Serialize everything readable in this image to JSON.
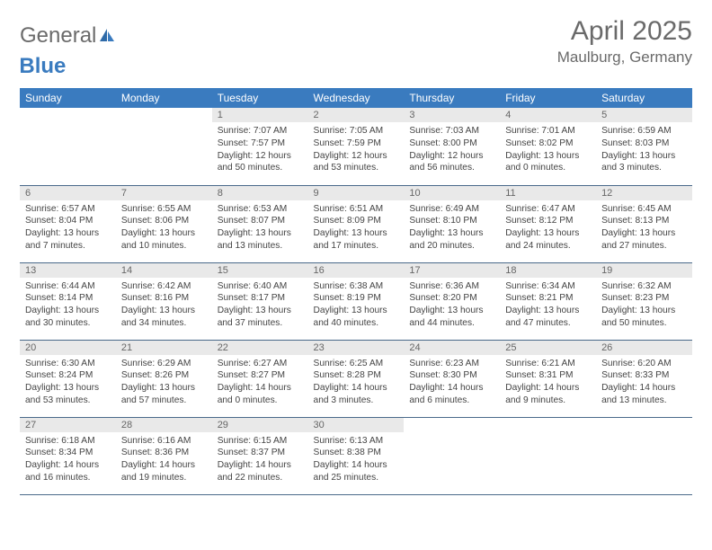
{
  "logo": {
    "text1": "General",
    "text2": "Blue"
  },
  "title": "April 2025",
  "location": "Maulburg, Germany",
  "weekdays": [
    "Sunday",
    "Monday",
    "Tuesday",
    "Wednesday",
    "Thursday",
    "Friday",
    "Saturday"
  ],
  "colors": {
    "header_bg": "#3a7bbf",
    "daynum_bg": "#e9e9e9",
    "border": "#4a6a8a"
  },
  "grid": [
    [
      null,
      null,
      {
        "n": "1",
        "sr": "7:07 AM",
        "ss": "7:57 PM",
        "dl": "12 hours and 50 minutes."
      },
      {
        "n": "2",
        "sr": "7:05 AM",
        "ss": "7:59 PM",
        "dl": "12 hours and 53 minutes."
      },
      {
        "n": "3",
        "sr": "7:03 AM",
        "ss": "8:00 PM",
        "dl": "12 hours and 56 minutes."
      },
      {
        "n": "4",
        "sr": "7:01 AM",
        "ss": "8:02 PM",
        "dl": "13 hours and 0 minutes."
      },
      {
        "n": "5",
        "sr": "6:59 AM",
        "ss": "8:03 PM",
        "dl": "13 hours and 3 minutes."
      }
    ],
    [
      {
        "n": "6",
        "sr": "6:57 AM",
        "ss": "8:04 PM",
        "dl": "13 hours and 7 minutes."
      },
      {
        "n": "7",
        "sr": "6:55 AM",
        "ss": "8:06 PM",
        "dl": "13 hours and 10 minutes."
      },
      {
        "n": "8",
        "sr": "6:53 AM",
        "ss": "8:07 PM",
        "dl": "13 hours and 13 minutes."
      },
      {
        "n": "9",
        "sr": "6:51 AM",
        "ss": "8:09 PM",
        "dl": "13 hours and 17 minutes."
      },
      {
        "n": "10",
        "sr": "6:49 AM",
        "ss": "8:10 PM",
        "dl": "13 hours and 20 minutes."
      },
      {
        "n": "11",
        "sr": "6:47 AM",
        "ss": "8:12 PM",
        "dl": "13 hours and 24 minutes."
      },
      {
        "n": "12",
        "sr": "6:45 AM",
        "ss": "8:13 PM",
        "dl": "13 hours and 27 minutes."
      }
    ],
    [
      {
        "n": "13",
        "sr": "6:44 AM",
        "ss": "8:14 PM",
        "dl": "13 hours and 30 minutes."
      },
      {
        "n": "14",
        "sr": "6:42 AM",
        "ss": "8:16 PM",
        "dl": "13 hours and 34 minutes."
      },
      {
        "n": "15",
        "sr": "6:40 AM",
        "ss": "8:17 PM",
        "dl": "13 hours and 37 minutes."
      },
      {
        "n": "16",
        "sr": "6:38 AM",
        "ss": "8:19 PM",
        "dl": "13 hours and 40 minutes."
      },
      {
        "n": "17",
        "sr": "6:36 AM",
        "ss": "8:20 PM",
        "dl": "13 hours and 44 minutes."
      },
      {
        "n": "18",
        "sr": "6:34 AM",
        "ss": "8:21 PM",
        "dl": "13 hours and 47 minutes."
      },
      {
        "n": "19",
        "sr": "6:32 AM",
        "ss": "8:23 PM",
        "dl": "13 hours and 50 minutes."
      }
    ],
    [
      {
        "n": "20",
        "sr": "6:30 AM",
        "ss": "8:24 PM",
        "dl": "13 hours and 53 minutes."
      },
      {
        "n": "21",
        "sr": "6:29 AM",
        "ss": "8:26 PM",
        "dl": "13 hours and 57 minutes."
      },
      {
        "n": "22",
        "sr": "6:27 AM",
        "ss": "8:27 PM",
        "dl": "14 hours and 0 minutes."
      },
      {
        "n": "23",
        "sr": "6:25 AM",
        "ss": "8:28 PM",
        "dl": "14 hours and 3 minutes."
      },
      {
        "n": "24",
        "sr": "6:23 AM",
        "ss": "8:30 PM",
        "dl": "14 hours and 6 minutes."
      },
      {
        "n": "25",
        "sr": "6:21 AM",
        "ss": "8:31 PM",
        "dl": "14 hours and 9 minutes."
      },
      {
        "n": "26",
        "sr": "6:20 AM",
        "ss": "8:33 PM",
        "dl": "14 hours and 13 minutes."
      }
    ],
    [
      {
        "n": "27",
        "sr": "6:18 AM",
        "ss": "8:34 PM",
        "dl": "14 hours and 16 minutes."
      },
      {
        "n": "28",
        "sr": "6:16 AM",
        "ss": "8:36 PM",
        "dl": "14 hours and 19 minutes."
      },
      {
        "n": "29",
        "sr": "6:15 AM",
        "ss": "8:37 PM",
        "dl": "14 hours and 22 minutes."
      },
      {
        "n": "30",
        "sr": "6:13 AM",
        "ss": "8:38 PM",
        "dl": "14 hours and 25 minutes."
      },
      null,
      null,
      null
    ]
  ],
  "labels": {
    "sunrise": "Sunrise:",
    "sunset": "Sunset:",
    "daylight": "Daylight:"
  }
}
